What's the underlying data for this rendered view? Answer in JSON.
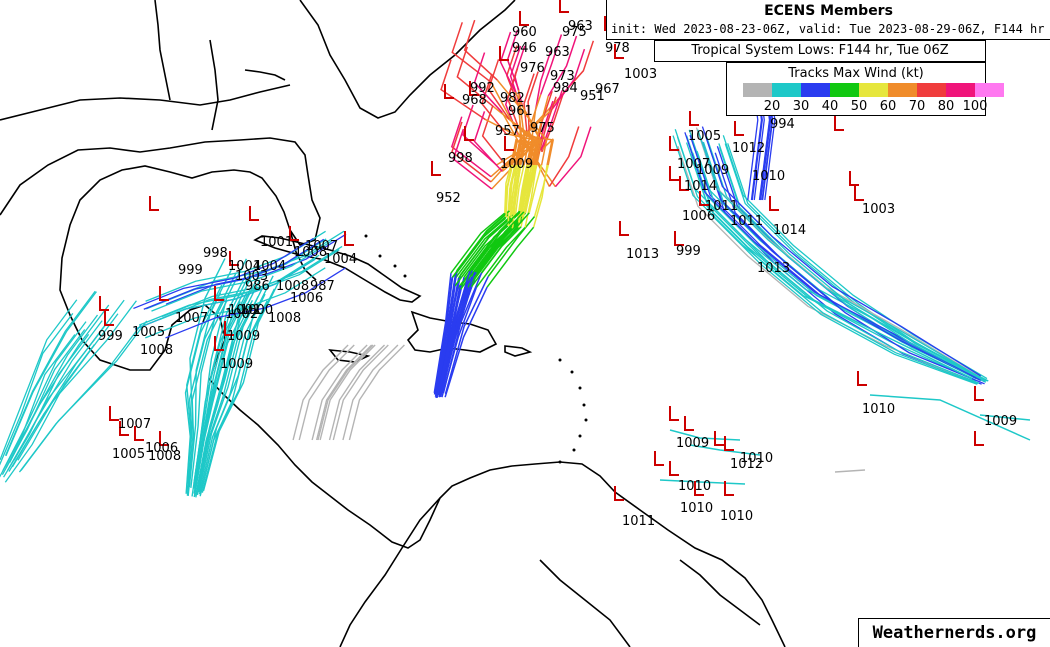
{
  "header": {
    "title": "ECENS Members",
    "subtitle": "init: Wed 2023-08-23-06Z, valid: Tue 2023-08-29-06Z, F144 hr"
  },
  "lows_box": {
    "text": "Tropical System Lows: F144 hr, Tue 06Z"
  },
  "legend": {
    "title": "Tracks Max Wind (kt)",
    "swatch_colors": [
      "#b4b4b4",
      "#1ec8c8",
      "#2a3cf0",
      "#11c811",
      "#e6e63c",
      "#f08c2a",
      "#f03c3c",
      "#f0147a",
      "#ff78f0"
    ],
    "ticks": [
      "20",
      "30",
      "40",
      "50",
      "60",
      "70",
      "80",
      "100"
    ]
  },
  "credit": "Weathernerds.org",
  "pressure_labels": [
    "963",
    "960",
    "946",
    "963",
    "975",
    "978",
    "1003",
    "976",
    "973",
    "967",
    "951",
    "984",
    "992",
    "982",
    "968",
    "961",
    "975",
    "957",
    "998",
    "1009",
    "952",
    "994",
    "1005",
    "1012",
    "1009",
    "1007",
    "1010",
    "1014",
    "1003",
    "1011",
    "1006",
    "1011",
    "1014",
    "1013",
    "1013",
    "999",
    "1002",
    "1004",
    "1008",
    "1004",
    "1001",
    "1007",
    "998",
    "999",
    "1008",
    "1004",
    "1003",
    "986",
    "987",
    "1006",
    "1008",
    "1001",
    "1000",
    "1009",
    "1007",
    "1005",
    "999",
    "1008",
    "1009",
    "1007",
    "1006",
    "1005",
    "1008",
    "1010",
    "1009",
    "1012",
    "1010",
    "1009",
    "1010",
    "1010",
    "1010",
    "1011"
  ]
}
